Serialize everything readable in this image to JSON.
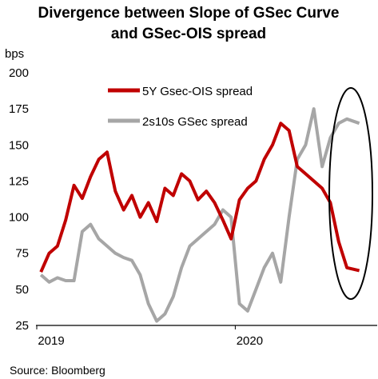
{
  "chart_data": {
    "type": "line",
    "title": "Divergence between Slope of GSec Curve and GSec-OIS spread",
    "title_lines": [
      "Divergence between Slope of GSec Curve",
      "and GSec-OIS spread"
    ],
    "y_unit": "bps",
    "ylim": [
      25,
      200
    ],
    "y_ticks": [
      "200",
      "175",
      "150",
      "125",
      "100",
      "75",
      "50",
      "25"
    ],
    "x_ticks": [
      {
        "label": "2019",
        "x": "2019-01"
      },
      {
        "label": "2020",
        "x": "2020-01"
      }
    ],
    "xlim": [
      "2019-01",
      "2020-08"
    ],
    "grid": false,
    "legend_position": "top-center",
    "source": "Source: Bloomberg",
    "annotation": "ellipse highlighting divergence at end of period",
    "series": [
      {
        "name": "5Y Gsec-OIS spread",
        "color": "#c00000",
        "x": [
          "2019-01",
          "2019-01",
          "2019-02",
          "2019-02",
          "2019-03",
          "2019-03",
          "2019-04",
          "2019-04",
          "2019-05",
          "2019-05",
          "2019-06",
          "2019-06",
          "2019-07",
          "2019-07",
          "2019-08",
          "2019-08",
          "2019-09",
          "2019-09",
          "2019-10",
          "2019-10",
          "2019-11",
          "2019-11",
          "2019-12",
          "2019-12",
          "2020-01",
          "2020-01",
          "2020-02",
          "2020-02",
          "2020-03",
          "2020-03",
          "2020-04",
          "2020-04",
          "2020-05",
          "2020-05",
          "2020-06",
          "2020-06",
          "2020-07",
          "2020-07",
          "2020-08"
        ],
        "values": [
          62,
          75,
          80,
          98,
          122,
          113,
          128,
          140,
          145,
          118,
          105,
          115,
          100,
          110,
          97,
          120,
          115,
          130,
          125,
          112,
          118,
          110,
          98,
          85,
          112,
          120,
          125,
          140,
          150,
          165,
          160,
          135,
          130,
          125,
          120,
          110,
          83,
          65,
          63
        ]
      },
      {
        "name": "2s10s GSec spread",
        "color": "#a6a6a6",
        "x": [
          "2019-01",
          "2019-01",
          "2019-02",
          "2019-02",
          "2019-03",
          "2019-03",
          "2019-04",
          "2019-04",
          "2019-05",
          "2019-05",
          "2019-06",
          "2019-06",
          "2019-07",
          "2019-07",
          "2019-08",
          "2019-08",
          "2019-09",
          "2019-09",
          "2019-10",
          "2019-10",
          "2019-11",
          "2019-11",
          "2019-12",
          "2019-12",
          "2020-01",
          "2020-01",
          "2020-02",
          "2020-02",
          "2020-03",
          "2020-03",
          "2020-04",
          "2020-04",
          "2020-05",
          "2020-05",
          "2020-06",
          "2020-06",
          "2020-07",
          "2020-07",
          "2020-08"
        ],
        "values": [
          60,
          55,
          58,
          56,
          56,
          90,
          95,
          85,
          80,
          75,
          72,
          70,
          60,
          40,
          28,
          33,
          45,
          65,
          80,
          85,
          90,
          95,
          105,
          100,
          40,
          35,
          50,
          65,
          75,
          55,
          100,
          140,
          150,
          175,
          135,
          155,
          165,
          168,
          165
        ]
      }
    ]
  }
}
